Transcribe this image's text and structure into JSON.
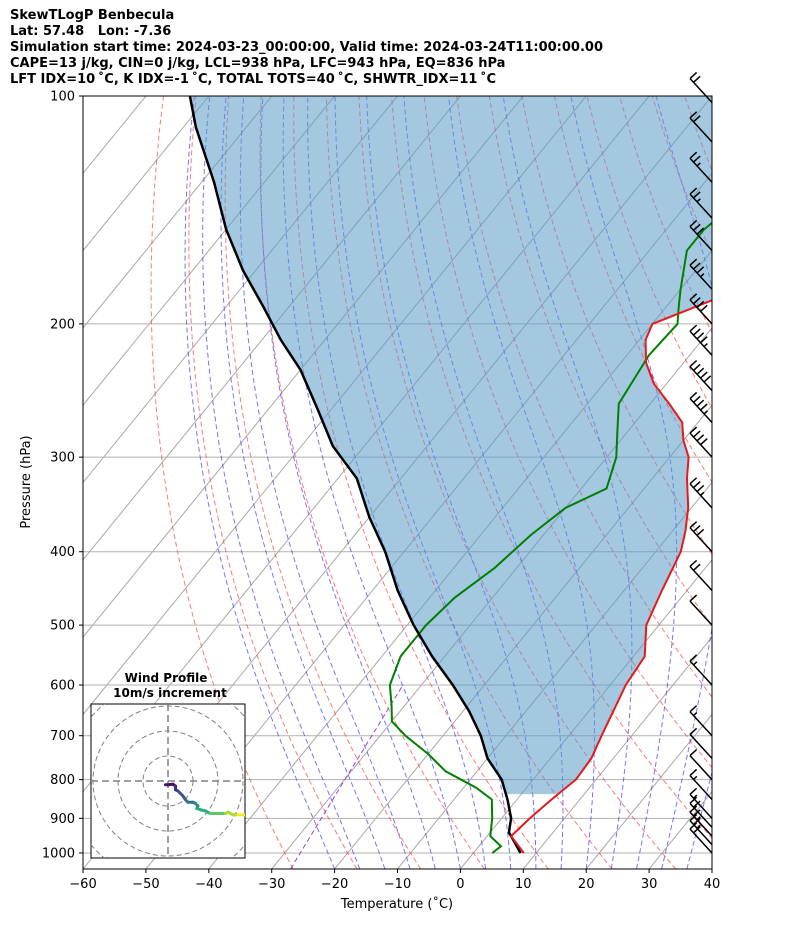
{
  "header": {
    "lines": [
      "SkewTLogP Benbecula",
      "Lat: 57.48   Lon: -7.36",
      "Simulation start time: 2024-03-23_00:00:00, Valid time: 2024-03-24T11:00:00.00",
      "CAPE=13 j/kg, CIN=0 j/kg, LCL=938 hPa, LFC=943 hPa, EQ=836 hPa",
      "LFT IDX=10 ˚C, K IDX=-1 ˚C, TOTAL TOTS=40 ˚C, SHWTR_IDX=11 ˚C"
    ]
  },
  "chart_data": {
    "type": "line",
    "subtype": "skew-t log-p",
    "xlabel": "Temperature (˚C)",
    "ylabel": "Pressure (hPa)",
    "xlim": [
      -60,
      40
    ],
    "ylim": [
      1050,
      100
    ],
    "y_scale": "log",
    "x_ticks": [
      -60,
      -50,
      -40,
      -30,
      -20,
      -10,
      0,
      10,
      20,
      30,
      40
    ],
    "x_tick_labels": [
      "−60",
      "−50",
      "−40",
      "−30",
      "−20",
      "−10",
      "0",
      "10",
      "20",
      "30",
      "40"
    ],
    "y_ticks": [
      1000,
      900,
      800,
      700,
      600,
      500,
      400,
      300,
      200,
      100
    ],
    "y_tick_labels": [
      "1000",
      "900",
      "800",
      "700",
      "600",
      "500",
      "400",
      "300",
      "200",
      "100"
    ],
    "grid": true,
    "colors": {
      "temperature": "#e41a1c",
      "dewpoint": "#008000",
      "parcel": "#000000",
      "cape_fill": "#5b9bc8",
      "dry_adiabats": "#ff4040",
      "moist_adiabats": "#3a3aff",
      "mixing_ratio": "#9e3fd0",
      "isotherms": "#a9a9a9"
    },
    "series": [
      {
        "points": [
          [
            8,
            1000
          ],
          [
            3.8,
            950
          ],
          [
            4.5,
            900
          ],
          [
            5.5,
            850
          ],
          [
            6.8,
            800
          ],
          [
            6.5,
            750
          ],
          [
            5.2,
            700
          ],
          [
            2.5,
            600
          ],
          [
            1.8,
            550
          ],
          [
            -2,
            500
          ],
          [
            -4,
            450
          ],
          [
            -6,
            400
          ],
          [
            -8,
            375
          ],
          [
            -10.5,
            350
          ],
          [
            -14.5,
            320
          ],
          [
            -17,
            300
          ],
          [
            -20,
            285
          ],
          [
            -22.5,
            270
          ],
          [
            -27,
            255
          ],
          [
            -32,
            240
          ],
          [
            -36,
            225
          ],
          [
            -39,
            210
          ],
          [
            -40,
            200
          ],
          [
            -33,
            185
          ],
          [
            -25,
            170
          ],
          [
            -17,
            155
          ],
          [
            -10,
            140
          ],
          [
            -7,
            130
          ],
          [
            -5,
            120
          ],
          [
            -3,
            110
          ],
          [
            -2,
            100
          ]
        ]
      },
      {
        "points": [
          [
            3,
            1000
          ],
          [
            3.5,
            980
          ],
          [
            0.5,
            950
          ],
          [
            -1.5,
            900
          ],
          [
            -4,
            850
          ],
          [
            -8,
            820
          ],
          [
            -15,
            780
          ],
          [
            -20,
            740
          ],
          [
            -26,
            700
          ],
          [
            -30,
            670
          ],
          [
            -32,
            640
          ],
          [
            -35,
            600
          ],
          [
            -37,
            550
          ],
          [
            -37,
            500
          ],
          [
            -36,
            460
          ],
          [
            -33.5,
            420
          ],
          [
            -32,
            380
          ],
          [
            -30,
            350
          ],
          [
            -26,
            330
          ],
          [
            -28.5,
            300
          ],
          [
            -32,
            275
          ],
          [
            -35,
            255
          ],
          [
            -36.5,
            220
          ],
          [
            -36,
            200
          ],
          [
            -38,
            190
          ],
          [
            -40,
            180
          ],
          [
            -44,
            160
          ],
          [
            -44,
            150
          ],
          [
            -41,
            130
          ],
          [
            -38,
            110
          ],
          [
            -36,
            100
          ]
        ]
      },
      {
        "points": [
          [
            7.5,
            1000
          ],
          [
            3.8,
            950
          ],
          [
            3,
            940
          ],
          [
            1.5,
            900
          ],
          [
            -1.5,
            850
          ],
          [
            -5,
            800
          ],
          [
            -10,
            750
          ],
          [
            -14,
            700
          ],
          [
            -19,
            650
          ],
          [
            -25,
            600
          ],
          [
            -32,
            550
          ],
          [
            -39,
            500
          ],
          [
            -46,
            450
          ],
          [
            -53,
            400
          ],
          [
            -60,
            360
          ],
          [
            -67,
            320
          ],
          [
            -75,
            290
          ],
          [
            -82,
            260
          ],
          [
            -90,
            230
          ],
          [
            -97,
            210
          ],
          [
            -104,
            190
          ],
          [
            -112,
            170
          ],
          [
            -120,
            150
          ],
          [
            -128,
            130
          ],
          [
            -138,
            110
          ],
          [
            -143,
            100
          ]
        ]
      }
    ],
    "cape_region": {
      "pressure_range": [
        836,
        100
      ],
      "shaded_between": [
        "parcel",
        "temperature"
      ]
    },
    "wind_barbs": [
      {
        "pressure": 1000,
        "speed_kt": 20
      },
      {
        "pressure": 975,
        "speed_kt": 25
      },
      {
        "pressure": 950,
        "speed_kt": 25
      },
      {
        "pressure": 925,
        "speed_kt": 20
      },
      {
        "pressure": 900,
        "speed_kt": 15
      },
      {
        "pressure": 850,
        "speed_kt": 15
      },
      {
        "pressure": 800,
        "speed_kt": 10
      },
      {
        "pressure": 750,
        "speed_kt": 10
      },
      {
        "pressure": 700,
        "speed_kt": 15
      },
      {
        "pressure": 600,
        "speed_kt": 15
      },
      {
        "pressure": 500,
        "speed_kt": 10
      },
      {
        "pressure": 450,
        "speed_kt": 20
      },
      {
        "pressure": 400,
        "speed_kt": 30
      },
      {
        "pressure": 350,
        "speed_kt": 35
      },
      {
        "pressure": 300,
        "speed_kt": 40
      },
      {
        "pressure": 270,
        "speed_kt": 45
      },
      {
        "pressure": 245,
        "speed_kt": 50
      },
      {
        "pressure": 220,
        "speed_kt": 45
      },
      {
        "pressure": 200,
        "speed_kt": 40
      },
      {
        "pressure": 180,
        "speed_kt": 35
      },
      {
        "pressure": 160,
        "speed_kt": 30
      },
      {
        "pressure": 145,
        "speed_kt": 25
      },
      {
        "pressure": 130,
        "speed_kt": 25
      },
      {
        "pressure": 115,
        "speed_kt": 20
      },
      {
        "pressure": 102,
        "speed_kt": 20
      }
    ],
    "hodograph": {
      "title": "Wind Profile",
      "subtitle": "10m/s increment",
      "ring_increment_ms": 10,
      "rings": 3,
      "points": [
        [
          -1,
          -1.5
        ],
        [
          0,
          -1.5
        ],
        [
          2,
          -1.3
        ],
        [
          3,
          -2
        ],
        [
          3,
          -3
        ],
        [
          3,
          -3.5
        ],
        [
          4,
          -4
        ],
        [
          5,
          -5
        ],
        [
          6,
          -6
        ],
        [
          7,
          -7.5
        ],
        [
          8,
          -8.5
        ],
        [
          10,
          -8.5
        ],
        [
          11,
          -9
        ],
        [
          12,
          -10
        ],
        [
          11.5,
          -11
        ],
        [
          13,
          -11.5
        ],
        [
          15,
          -12
        ],
        [
          17,
          -13
        ],
        [
          19,
          -13
        ],
        [
          21,
          -13
        ],
        [
          23,
          -13
        ],
        [
          24,
          -12.5
        ],
        [
          26,
          -13.5
        ],
        [
          28,
          -13.5
        ],
        [
          30,
          -13.5
        ],
        [
          31,
          -13.5
        ]
      ],
      "colors": [
        "#471164",
        "#46307e",
        "#3b528b",
        "#2c728e",
        "#21918c",
        "#28ae80",
        "#5ec962",
        "#addc30",
        "#fde725"
      ]
    }
  }
}
